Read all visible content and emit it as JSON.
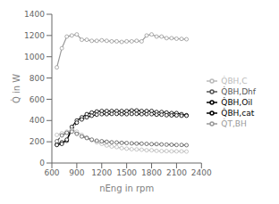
{
  "chart_data": {
    "type": "line",
    "xlabel": "nEng in rpm",
    "ylabel": "Q̇ in W",
    "x": [
      660,
      720,
      780,
      840,
      900,
      960,
      1020,
      1080,
      1140,
      1200,
      1260,
      1320,
      1380,
      1440,
      1500,
      1560,
      1620,
      1680,
      1740,
      1800,
      1860,
      1920,
      1980,
      2040,
      2100,
      2160,
      2220
    ],
    "series": [
      {
        "name": "Q̇BH,Oil",
        "color": "#000000",
        "line_style": "solid",
        "marker": "circle",
        "values": [
          175,
          195,
          210,
          340,
          400,
          430,
          460,
          475,
          485,
          490,
          490,
          490,
          490,
          490,
          490,
          495,
          495,
          490,
          490,
          490,
          480,
          480,
          475,
          470,
          470,
          460,
          450
        ]
      },
      {
        "name": "Q̇BH,cat",
        "color": "#000000",
        "line_style": "dashed",
        "marker": "circle",
        "values": [
          170,
          180,
          220,
          310,
          380,
          410,
          430,
          445,
          455,
          460,
          460,
          462,
          462,
          460,
          460,
          462,
          462,
          460,
          460,
          460,
          455,
          455,
          450,
          448,
          448,
          445,
          445
        ]
      },
      {
        "name": "Q̇T,BH",
        "color": "#999999",
        "line_style": "solid",
        "marker": "circle",
        "values": [
          900,
          1080,
          1190,
          1200,
          1210,
          1160,
          1160,
          1150,
          1150,
          1155,
          1150,
          1145,
          1145,
          1140,
          1145,
          1145,
          1150,
          1145,
          1200,
          1210,
          1190,
          1190,
          1175,
          1175,
          1170,
          1168,
          1165
        ]
      },
      {
        "name": "Q̇BH,C",
        "color": "#bbbbbb",
        "line_style": "solid",
        "marker": "circle",
        "values": [
          265,
          280,
          295,
          310,
          295,
          265,
          240,
          215,
          195,
          180,
          165,
          155,
          150,
          140,
          135,
          130,
          128,
          125,
          120,
          120,
          115,
          112,
          112,
          110,
          110,
          110,
          108
        ]
      },
      {
        "name": "Q̇BH,Dhf",
        "color": "#555555",
        "line_style": "dashed",
        "marker": "circle",
        "values": [
          205,
          260,
          285,
          295,
          275,
          250,
          235,
          220,
          210,
          205,
          200,
          195,
          193,
          190,
          188,
          185,
          183,
          182,
          180,
          178,
          178,
          175,
          173,
          172,
          170,
          170,
          168
        ]
      }
    ],
    "xlim": [
      600,
      2400
    ],
    "ylim": [
      0,
      1400
    ],
    "xticks": [
      600,
      900,
      1200,
      1500,
      1800,
      2100,
      2400
    ],
    "yticks": [
      0,
      200,
      400,
      600,
      800,
      1000,
      1200,
      1400
    ],
    "grid": false,
    "legend": "right"
  }
}
